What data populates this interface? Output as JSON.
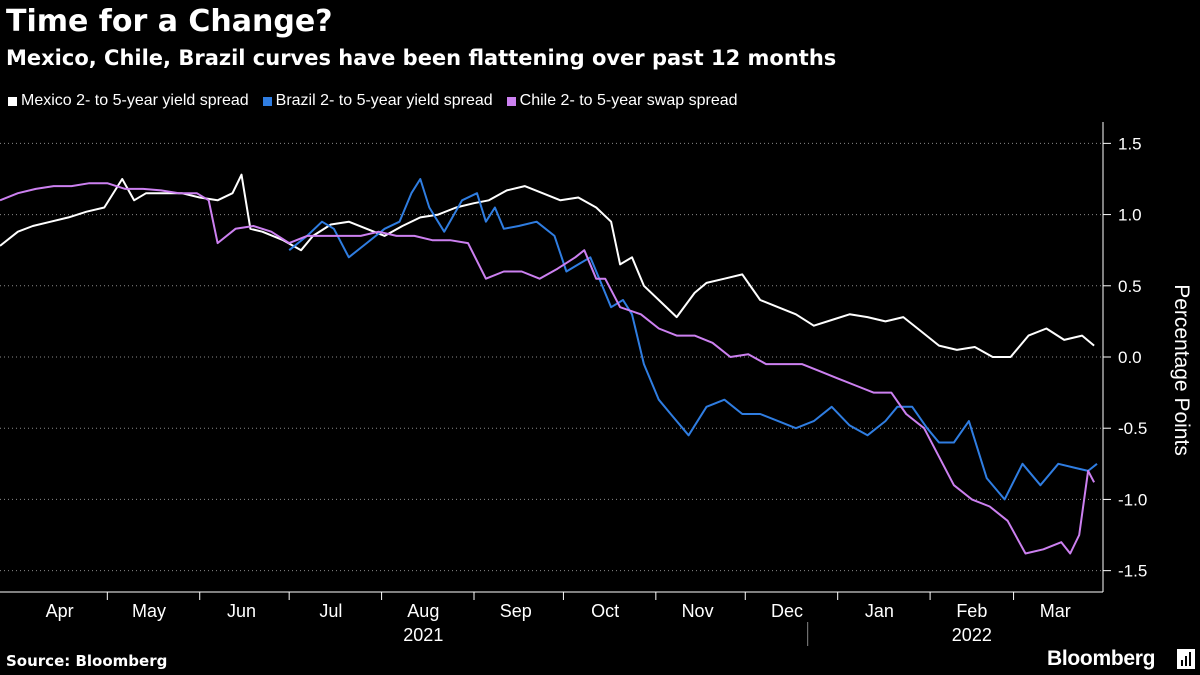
{
  "title": "Time for a Change?",
  "subtitle": "Mexico, Chile, Brazil curves have been flattening over past 12 months",
  "source": "Source: Bloomberg",
  "brand": "Bloomberg",
  "chart_data": {
    "type": "line",
    "ylabel": "Percentage Points",
    "ylim": [
      -1.65,
      1.65
    ],
    "yticks": [
      1.5,
      1.0,
      0.5,
      0.0,
      -0.5,
      -1.0,
      -1.5
    ],
    "ytick_labels": [
      "1.5",
      "1.0",
      "0.5",
      "0.0",
      "-0.5",
      "-1.0",
      "-1.5"
    ],
    "y_axis_side": "right",
    "grid": "horizontal dotted",
    "legend_position": "top-left",
    "x_range": [
      "2021-03-26",
      "2022-03-31"
    ],
    "month_labels": [
      {
        "label": "Apr",
        "date": "2021-04-15"
      },
      {
        "label": "May",
        "date": "2021-05-15"
      },
      {
        "label": "Jun",
        "date": "2021-06-15"
      },
      {
        "label": "Jul",
        "date": "2021-07-15"
      },
      {
        "label": "Aug",
        "date": "2021-08-15"
      },
      {
        "label": "Sep",
        "date": "2021-09-15"
      },
      {
        "label": "Oct",
        "date": "2021-10-15"
      },
      {
        "label": "Nov",
        "date": "2021-11-15"
      },
      {
        "label": "Dec",
        "date": "2021-12-15"
      },
      {
        "label": "Jan",
        "date": "2022-01-15"
      },
      {
        "label": "Feb",
        "date": "2022-02-15"
      },
      {
        "label": "Mar",
        "date": "2022-03-15"
      }
    ],
    "month_ticks": [
      "2021-05-01",
      "2021-06-01",
      "2021-07-01",
      "2021-08-01",
      "2021-09-01",
      "2021-10-01",
      "2021-11-01",
      "2021-12-01",
      "2022-01-01",
      "2022-02-01",
      "2022-03-01"
    ],
    "year_labels": [
      {
        "label": "2021",
        "date": "2021-08-15"
      },
      {
        "label": "2022",
        "date": "2022-02-15"
      }
    ],
    "year_divider": "2022-01-01",
    "series": [
      {
        "name": "Mexico 2- to 5-year yield spread",
        "color": "#ffffff",
        "x": [
          "2021-03-26",
          "2021-04-01",
          "2021-04-06",
          "2021-04-12",
          "2021-04-18",
          "2021-04-24",
          "2021-04-30",
          "2021-05-06",
          "2021-05-10",
          "2021-05-14",
          "2021-05-20",
          "2021-05-26",
          "2021-06-01",
          "2021-06-07",
          "2021-06-12",
          "2021-06-15",
          "2021-06-18",
          "2021-06-22",
          "2021-06-29",
          "2021-07-05",
          "2021-07-09",
          "2021-07-15",
          "2021-07-21",
          "2021-07-27",
          "2021-08-02",
          "2021-08-08",
          "2021-08-14",
          "2021-08-20",
          "2021-08-26",
          "2021-09-01",
          "2021-09-06",
          "2021-09-12",
          "2021-09-18",
          "2021-09-24",
          "2021-09-30",
          "2021-10-06",
          "2021-10-12",
          "2021-10-17",
          "2021-10-20",
          "2021-10-24",
          "2021-10-28",
          "2021-11-03",
          "2021-11-08",
          "2021-11-14",
          "2021-11-18",
          "2021-11-24",
          "2021-11-30",
          "2021-12-06",
          "2021-12-12",
          "2021-12-18",
          "2021-12-24",
          "2021-12-30",
          "2022-01-05",
          "2022-01-11",
          "2022-01-17",
          "2022-01-23",
          "2022-01-29",
          "2022-02-04",
          "2022-02-10",
          "2022-02-16",
          "2022-02-22",
          "2022-02-28",
          "2022-03-06",
          "2022-03-12",
          "2022-03-18",
          "2022-03-24",
          "2022-03-28"
        ],
        "y": [
          0.78,
          0.88,
          0.92,
          0.95,
          0.98,
          1.02,
          1.05,
          1.25,
          1.1,
          1.15,
          1.15,
          1.15,
          1.12,
          1.1,
          1.15,
          1.28,
          0.9,
          0.88,
          0.82,
          0.75,
          0.85,
          0.93,
          0.95,
          0.9,
          0.85,
          0.92,
          0.98,
          1.0,
          1.05,
          1.08,
          1.1,
          1.17,
          1.2,
          1.15,
          1.1,
          1.12,
          1.05,
          0.95,
          0.65,
          0.7,
          0.5,
          0.38,
          0.28,
          0.45,
          0.52,
          0.55,
          0.58,
          0.4,
          0.35,
          0.3,
          0.22,
          0.26,
          0.3,
          0.28,
          0.25,
          0.28,
          0.18,
          0.08,
          0.05,
          0.07,
          0.0,
          0.0,
          0.15,
          0.2,
          0.12,
          0.15,
          0.08
        ]
      },
      {
        "name": "Brazil 2- to 5-year yield spread",
        "color": "#2f7de1",
        "x": [
          "2021-07-01",
          "2021-07-07",
          "2021-07-12",
          "2021-07-16",
          "2021-07-21",
          "2021-07-27",
          "2021-08-02",
          "2021-08-07",
          "2021-08-11",
          "2021-08-14",
          "2021-08-17",
          "2021-08-22",
          "2021-08-28",
          "2021-09-02",
          "2021-09-05",
          "2021-09-08",
          "2021-09-11",
          "2021-09-16",
          "2021-09-22",
          "2021-09-28",
          "2021-10-02",
          "2021-10-06",
          "2021-10-10",
          "2021-10-14",
          "2021-10-17",
          "2021-10-21",
          "2021-10-24",
          "2021-10-28",
          "2021-11-02",
          "2021-11-06",
          "2021-11-12",
          "2021-11-18",
          "2021-11-24",
          "2021-11-30",
          "2021-12-06",
          "2021-12-12",
          "2021-12-18",
          "2021-12-24",
          "2021-12-30",
          "2022-01-05",
          "2022-01-11",
          "2022-01-17",
          "2022-01-21",
          "2022-01-26",
          "2022-01-31",
          "2022-02-04",
          "2022-02-09",
          "2022-02-14",
          "2022-02-20",
          "2022-02-26",
          "2022-03-04",
          "2022-03-10",
          "2022-03-16",
          "2022-03-22",
          "2022-03-26",
          "2022-03-29"
        ],
        "y": [
          0.75,
          0.85,
          0.95,
          0.9,
          0.7,
          0.8,
          0.9,
          0.95,
          1.15,
          1.25,
          1.05,
          0.88,
          1.1,
          1.15,
          0.95,
          1.05,
          0.9,
          0.92,
          0.95,
          0.85,
          0.6,
          0.65,
          0.7,
          0.5,
          0.35,
          0.4,
          0.3,
          -0.05,
          -0.3,
          -0.4,
          -0.55,
          -0.35,
          -0.3,
          -0.4,
          -0.4,
          -0.45,
          -0.5,
          -0.45,
          -0.35,
          -0.48,
          -0.55,
          -0.45,
          -0.35,
          -0.35,
          -0.5,
          -0.6,
          -0.6,
          -0.45,
          -0.85,
          -1.0,
          -0.75,
          -0.9,
          -0.75,
          -0.78,
          -0.8,
          -0.75
        ]
      },
      {
        "name": "Chile 2- to 5-year swap spread",
        "color": "#cc80f0",
        "x": [
          "2021-03-26",
          "2021-04-01",
          "2021-04-07",
          "2021-04-13",
          "2021-04-19",
          "2021-04-25",
          "2021-05-01",
          "2021-05-07",
          "2021-05-13",
          "2021-05-19",
          "2021-05-25",
          "2021-05-31",
          "2021-06-04",
          "2021-06-07",
          "2021-06-13",
          "2021-06-19",
          "2021-06-25",
          "2021-07-01",
          "2021-07-07",
          "2021-07-13",
          "2021-07-19",
          "2021-07-25",
          "2021-07-31",
          "2021-08-06",
          "2021-08-12",
          "2021-08-18",
          "2021-08-24",
          "2021-08-30",
          "2021-09-05",
          "2021-09-11",
          "2021-09-17",
          "2021-09-23",
          "2021-09-29",
          "2021-10-05",
          "2021-10-08",
          "2021-10-12",
          "2021-10-15",
          "2021-10-20",
          "2021-10-27",
          "2021-11-02",
          "2021-11-08",
          "2021-11-14",
          "2021-11-20",
          "2021-11-26",
          "2021-12-02",
          "2021-12-08",
          "2021-12-14",
          "2021-12-20",
          "2021-12-26",
          "2022-01-01",
          "2022-01-07",
          "2022-01-13",
          "2022-01-19",
          "2022-01-24",
          "2022-01-30",
          "2022-02-04",
          "2022-02-09",
          "2022-02-15",
          "2022-02-21",
          "2022-02-27",
          "2022-03-05",
          "2022-03-11",
          "2022-03-17",
          "2022-03-20",
          "2022-03-23",
          "2022-03-26",
          "2022-03-28"
        ],
        "y": [
          1.1,
          1.15,
          1.18,
          1.2,
          1.2,
          1.22,
          1.22,
          1.18,
          1.18,
          1.17,
          1.15,
          1.15,
          1.1,
          0.8,
          0.9,
          0.92,
          0.88,
          0.8,
          0.85,
          0.85,
          0.85,
          0.85,
          0.88,
          0.85,
          0.85,
          0.82,
          0.82,
          0.8,
          0.55,
          0.6,
          0.6,
          0.55,
          0.62,
          0.7,
          0.75,
          0.55,
          0.55,
          0.35,
          0.3,
          0.2,
          0.15,
          0.15,
          0.1,
          0.0,
          0.02,
          -0.05,
          -0.05,
          -0.05,
          -0.1,
          -0.15,
          -0.2,
          -0.25,
          -0.25,
          -0.4,
          -0.5,
          -0.7,
          -0.9,
          -1.0,
          -1.05,
          -1.15,
          -1.38,
          -1.35,
          -1.3,
          -1.38,
          -1.25,
          -0.8,
          -0.88
        ]
      }
    ]
  }
}
